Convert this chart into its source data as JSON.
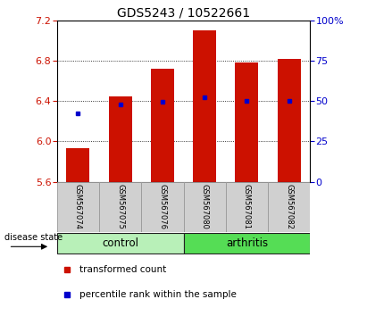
{
  "title": "GDS5243 / 10522661",
  "samples": [
    "GSM567074",
    "GSM567075",
    "GSM567076",
    "GSM567080",
    "GSM567081",
    "GSM567082"
  ],
  "bar_tops": [
    5.93,
    6.45,
    6.72,
    7.1,
    6.78,
    6.82
  ],
  "bar_bottom": 5.6,
  "blue_dots": [
    6.28,
    6.37,
    6.39,
    6.44,
    6.4,
    6.4
  ],
  "bar_color": "#cc1100",
  "dot_color": "#0000cc",
  "ylim": [
    5.6,
    7.2
  ],
  "right_ylim": [
    0,
    100
  ],
  "right_yticks": [
    0,
    25,
    50,
    75,
    100
  ],
  "right_yticklabels": [
    "0",
    "25",
    "50",
    "75",
    "100%"
  ],
  "left_yticks": [
    5.6,
    6.0,
    6.4,
    6.8,
    7.2
  ],
  "groups": [
    {
      "label": "control",
      "color": "#b8f0b8",
      "start": 0,
      "end": 2
    },
    {
      "label": "arthritis",
      "color": "#55dd55",
      "start": 3,
      "end": 5
    }
  ],
  "disease_state_label": "disease state",
  "legend_items": [
    {
      "label": "transformed count",
      "color": "#cc1100"
    },
    {
      "label": "percentile rank within the sample",
      "color": "#0000cc"
    }
  ],
  "title_fontsize": 10,
  "tick_fontsize": 8,
  "bar_width": 0.55,
  "plot_bg": "#ffffff"
}
